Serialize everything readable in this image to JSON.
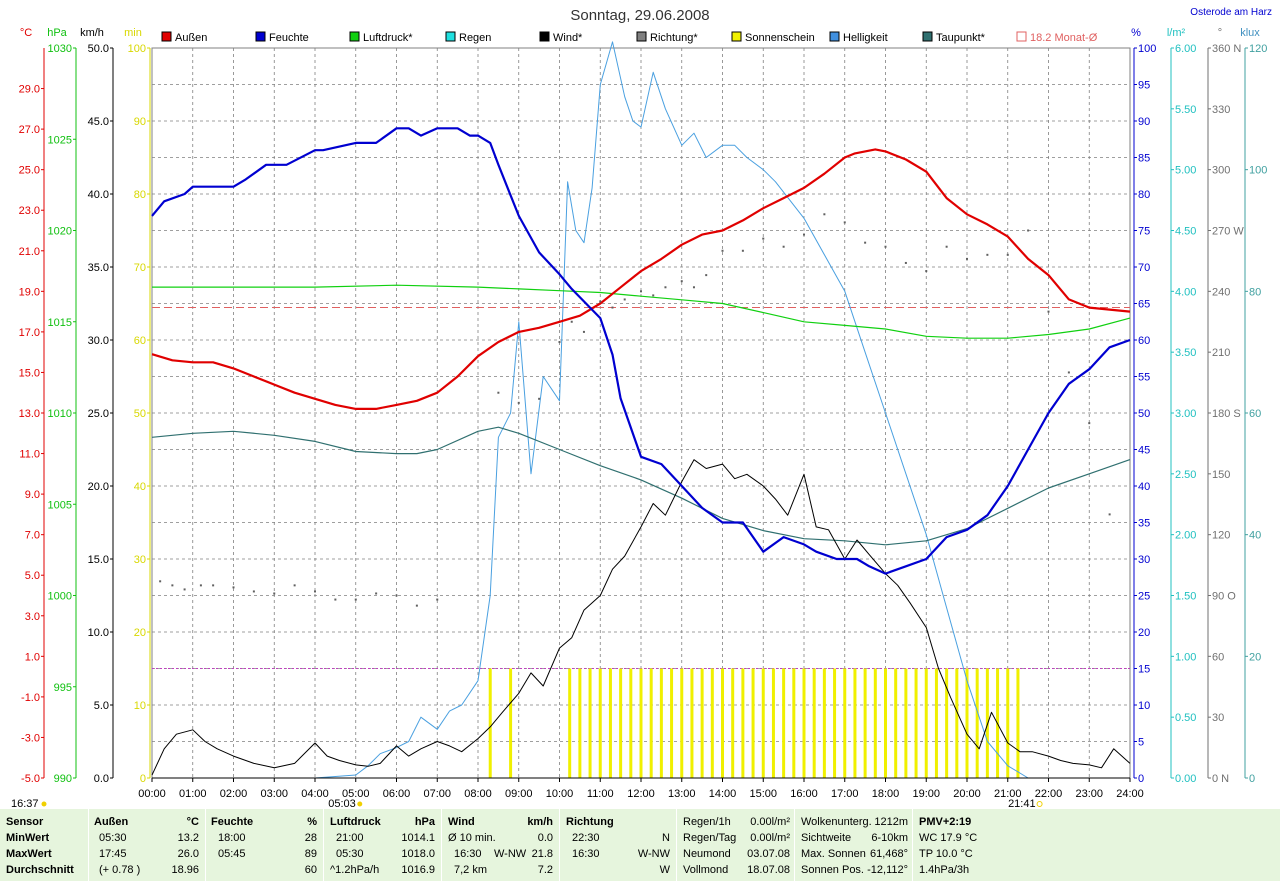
{
  "header": {
    "title": "Sonntag, 29.06.2008",
    "location": "Osterode am Harz",
    "units": {
      "temp": "°C",
      "pressure": "hPa",
      "wind": "km/h",
      "sun": "min",
      "humidity": "%",
      "rain": "l/m²",
      "direction": "°",
      "light": "klux"
    }
  },
  "legend": [
    {
      "label": "Außen",
      "color": "#e00000"
    },
    {
      "label": "Feuchte",
      "color": "#0000d0"
    },
    {
      "label": "Luftdruck*",
      "color": "#10d010"
    },
    {
      "label": "Regen",
      "color": "#20e0e0"
    },
    {
      "label": "Wind*",
      "color": "#000000"
    },
    {
      "label": "Richtung*",
      "color": "#808080"
    },
    {
      "label": "Sonnenschein",
      "color": "#f0f000"
    },
    {
      "label": "Helligkeit",
      "color": "#4090e0"
    },
    {
      "label": "Taupunkt*",
      "color": "#307070"
    },
    {
      "label": "18.2 Monat-Ø",
      "color": "#e06060"
    }
  ],
  "chart_data": {
    "type": "line",
    "x_ticks": [
      "00:00",
      "01:00",
      "02:00",
      "03:00",
      "04:00",
      "05:00",
      "06:00",
      "07:00",
      "08:00",
      "09:00",
      "10:00",
      "11:00",
      "12:00",
      "13:00",
      "14:00",
      "15:00",
      "16:00",
      "17:00",
      "18:00",
      "19:00",
      "20:00",
      "21:00",
      "22:00",
      "23:00",
      "24:00"
    ],
    "axes": {
      "temp": {
        "unit": "°C",
        "ylim": [
          -5,
          31
        ],
        "ticks": [
          "29.0",
          "27.0",
          "25.0",
          "23.0",
          "21.0",
          "19.0",
          "17.0",
          "15.0",
          "13.0",
          "11.0",
          "9.0",
          "7.0",
          "5.0",
          "3.0",
          "1.0",
          "-1.0",
          "-3.0",
          "-5.0"
        ]
      },
      "pressure": {
        "unit": "hPa",
        "ylim": [
          990,
          1030
        ],
        "ticks": [
          "1030",
          "1025",
          "1020",
          "1015",
          "1010",
          "1005",
          "1000",
          "995",
          "990"
        ]
      },
      "wind": {
        "unit": "km/h",
        "ylim": [
          0,
          50
        ],
        "ticks": [
          "50.0",
          "45.0",
          "40.0",
          "35.0",
          "30.0",
          "25.0",
          "20.0",
          "15.0",
          "10.0",
          "5.0",
          "0.0"
        ]
      },
      "sun": {
        "unit": "min",
        "ylim": [
          0,
          100
        ],
        "ticks": [
          "100",
          "90",
          "80",
          "70",
          "60",
          "50",
          "40",
          "30",
          "20",
          "10",
          "0"
        ]
      },
      "humidity": {
        "unit": "%",
        "ylim": [
          0,
          100
        ],
        "ticks": [
          "100",
          "95",
          "90",
          "85",
          "80",
          "75",
          "70",
          "65",
          "60",
          "55",
          "50",
          "45",
          "40",
          "35",
          "30",
          "25",
          "20",
          "15",
          "10",
          "5",
          "0"
        ]
      },
      "rain": {
        "unit": "l/m²",
        "ylim": [
          0,
          6
        ],
        "ticks": [
          "6.00",
          "5.50",
          "5.00",
          "4.50",
          "4.00",
          "3.50",
          "3.00",
          "2.50",
          "2.00",
          "1.50",
          "1.00",
          "0.50",
          "0.00"
        ]
      },
      "direction": {
        "unit": "°",
        "ylim": [
          0,
          360
        ],
        "ticks": [
          "360 N",
          "330",
          "300",
          "270 W",
          "240",
          "210",
          "180 S",
          "150",
          "120",
          "90 O",
          "60",
          "30",
          "0 N"
        ]
      },
      "light": {
        "unit": "klux",
        "ylim": [
          0,
          120
        ],
        "ticks": [
          "120",
          "100",
          "80",
          "60",
          "40",
          "20",
          "0"
        ]
      }
    },
    "monthly_avg_temp": 18.2,
    "series": [
      {
        "name": "Außen",
        "axis": "temp",
        "x": [
          0,
          0.5,
          1,
          1.5,
          2,
          2.5,
          3,
          3.5,
          4,
          4.5,
          5,
          5.5,
          6,
          6.5,
          7,
          7.5,
          8,
          8.5,
          9,
          9.5,
          10,
          10.5,
          11,
          11.5,
          12,
          12.5,
          13,
          13.5,
          14,
          14.5,
          15,
          15.5,
          16,
          16.5,
          17,
          17.25,
          17.5,
          17.75,
          18,
          18.5,
          19,
          19.5,
          20,
          20.5,
          21,
          21.5,
          22,
          22.5,
          23,
          23.5,
          24
        ],
        "y": [
          15.9,
          15.6,
          15.5,
          15.5,
          15.2,
          14.8,
          14.4,
          14.0,
          13.7,
          13.4,
          13.2,
          13.2,
          13.4,
          13.6,
          14.0,
          14.8,
          15.8,
          16.5,
          17.0,
          17.2,
          17.5,
          17.8,
          18.4,
          19.2,
          20.0,
          20.6,
          21.3,
          21.8,
          22.0,
          22.5,
          23.1,
          23.6,
          24.1,
          24.8,
          25.6,
          25.8,
          25.9,
          26.0,
          25.9,
          25.5,
          24.9,
          23.6,
          22.8,
          22.3,
          21.7,
          20.6,
          19.8,
          18.6,
          18.2,
          18.1,
          18.0
        ]
      },
      {
        "name": "Feuchte",
        "axis": "humidity",
        "x": [
          0,
          0.3,
          0.8,
          1,
          2,
          2.3,
          2.8,
          3.3,
          4,
          4.2,
          5,
          5.5,
          6,
          6.3,
          6.6,
          7,
          7.5,
          7.8,
          8,
          8.3,
          8.5,
          9,
          9.5,
          10,
          10.3,
          11,
          11.3,
          11.5,
          12,
          12.5,
          13,
          13.5,
          14,
          14.5,
          15,
          15.5,
          16,
          16.3,
          16.8,
          17.3,
          17.6,
          18,
          18.5,
          19,
          19.5,
          20,
          20.5,
          21,
          21.5,
          22,
          22.5,
          23,
          23.5,
          24
        ],
        "y": [
          77,
          79,
          80,
          81,
          81,
          82,
          84,
          84,
          86,
          86,
          87,
          87,
          89,
          89,
          88,
          89,
          89,
          88,
          88,
          87,
          84,
          77,
          72,
          69,
          67,
          63,
          58,
          52,
          44,
          43,
          40,
          37,
          35,
          35,
          31,
          33,
          32,
          31,
          30,
          30,
          29,
          28,
          29,
          30,
          33,
          34,
          36,
          40,
          45,
          50,
          54,
          56,
          59,
          60
        ]
      },
      {
        "name": "Luftdruck*",
        "axis": "pressure",
        "x": [
          0,
          2,
          4,
          6,
          8,
          9,
          10,
          11,
          12,
          13,
          14,
          15,
          16,
          17,
          18,
          19,
          20,
          20.5,
          21,
          22,
          23,
          24
        ],
        "y": [
          1016.9,
          1016.9,
          1016.9,
          1017.0,
          1016.9,
          1016.8,
          1016.7,
          1016.6,
          1016.4,
          1016.2,
          1016.0,
          1015.5,
          1015.0,
          1014.8,
          1014.6,
          1014.2,
          1014.1,
          1014.1,
          1014.1,
          1014.3,
          1014.6,
          1015.2
        ]
      },
      {
        "name": "Taupunkt*",
        "axis": "temp",
        "x": [
          0,
          0.5,
          1,
          2,
          3,
          4,
          5,
          6,
          6.5,
          7,
          8,
          8.5,
          9,
          10,
          11,
          12,
          13,
          14,
          15,
          16,
          17,
          17.5,
          18,
          19,
          20,
          21,
          22,
          23,
          24
        ],
        "y": [
          11.8,
          11.9,
          12.0,
          12.1,
          11.9,
          11.6,
          11.1,
          11.0,
          11.0,
          11.2,
          12.1,
          12.3,
          12.0,
          11.2,
          10.4,
          9.7,
          8.8,
          7.8,
          7.2,
          6.8,
          6.7,
          6.6,
          6.5,
          6.7,
          7.3,
          8.3,
          9.3,
          10.0,
          10.7
        ]
      },
      {
        "name": "Wind*",
        "axis": "wind",
        "x": [
          0,
          0.3,
          0.6,
          1,
          1.3,
          1.6,
          2,
          2.5,
          3,
          3.5,
          4,
          4.3,
          4.6,
          5,
          5.3,
          5.6,
          6,
          6.3,
          6.6,
          7,
          7.3,
          7.6,
          8,
          8.3,
          8.6,
          9,
          9.3,
          9.6,
          10,
          10.3,
          10.6,
          11,
          11.3,
          11.6,
          12,
          12.3,
          12.6,
          13,
          13.3,
          13.6,
          14,
          14.3,
          14.6,
          15,
          15.3,
          15.6,
          16,
          16.3,
          16.6,
          17,
          17.3,
          17.6,
          18,
          18.3,
          18.6,
          19,
          19.3,
          19.6,
          20,
          20.3,
          20.6,
          21,
          21.3,
          21.6,
          22,
          22.3,
          22.6,
          23,
          23.3,
          23.6,
          24
        ],
        "y": [
          0.2,
          2.0,
          3.0,
          3.3,
          2.5,
          2.0,
          1.5,
          1.0,
          0.7,
          1.0,
          2.4,
          1.5,
          1.2,
          0.9,
          0.8,
          1.0,
          2.2,
          1.5,
          2.0,
          2.5,
          2.2,
          1.8,
          2.7,
          3.5,
          4.5,
          5.8,
          7.2,
          6.3,
          8.9,
          9.6,
          11.5,
          12.5,
          14.3,
          15.2,
          17.2,
          18.8,
          18.0,
          20.3,
          21.8,
          21.2,
          21.5,
          20.5,
          20.8,
          20.0,
          19.1,
          18.0,
          20.8,
          17.2,
          17.0,
          15.0,
          16.3,
          15.3,
          14.0,
          13.2,
          12.0,
          10.3,
          7.5,
          5.5,
          3.0,
          2.0,
          4.5,
          2.4,
          1.8,
          1.8,
          1.5,
          1.2,
          1.0,
          0.9,
          0.7,
          2.0,
          1.0
        ]
      },
      {
        "name": "Helligkeit",
        "axis": "light",
        "x": [
          0,
          4,
          5,
          5.3,
          5.6,
          6,
          6.3,
          6.6,
          7,
          7.3,
          7.6,
          8,
          8.3,
          8.5,
          8.8,
          9,
          9.3,
          9.6,
          10,
          10.2,
          10.4,
          10.6,
          10.8,
          11,
          11.3,
          11.6,
          11.8,
          12,
          12.3,
          12.6,
          13,
          13.3,
          13.6,
          14,
          14.3,
          14.6,
          15,
          15.3,
          16,
          16.5,
          17,
          17.5,
          18,
          18.5,
          19,
          19.5,
          20,
          20.5,
          21,
          21.5,
          22,
          24
        ],
        "y": [
          0,
          0,
          0.5,
          2,
          4,
          5,
          6,
          10,
          8,
          11,
          12,
          16,
          30,
          56,
          60,
          75,
          50,
          66,
          62,
          98,
          90,
          88,
          97,
          114,
          121,
          112,
          108,
          107,
          116,
          110,
          104,
          106,
          102,
          104,
          104,
          102,
          100,
          98,
          92,
          86,
          80,
          70,
          60,
          50,
          40,
          28,
          16,
          6,
          2,
          0,
          0,
          0
        ]
      },
      {
        "name": "Richtung*",
        "axis": "direction",
        "x": [
          0.2,
          0.5,
          0.8,
          1.2,
          1.5,
          2.0,
          2.5,
          3.0,
          3.5,
          4.0,
          4.5,
          5.0,
          5.5,
          6.0,
          6.5,
          7.0,
          8.5,
          9.0,
          9.5,
          10.0,
          10.3,
          10.6,
          11.0,
          11.3,
          11.6,
          12.0,
          12.3,
          12.6,
          13.0,
          13.3,
          13.6,
          14.0,
          14.5,
          15.0,
          15.5,
          16.0,
          16.5,
          17.0,
          17.5,
          18.0,
          18.5,
          19.0,
          19.5,
          20.0,
          20.5,
          21.0,
          21.5,
          22.0,
          22.5,
          23.0,
          23.5
        ],
        "y": [
          97,
          95,
          93,
          95,
          95,
          94,
          92,
          91,
          95,
          92,
          88,
          88,
          91,
          90,
          85,
          88,
          190,
          185,
          187,
          215,
          225,
          220,
          235,
          232,
          236,
          240,
          238,
          242,
          245,
          242,
          248,
          260,
          260,
          266,
          262,
          268,
          278,
          274,
          264,
          262,
          254,
          250,
          262,
          256,
          258,
          258,
          270,
          230,
          200,
          175,
          130
        ]
      },
      {
        "name": "Sonnenschein",
        "axis": "sun",
        "x": [
          8.3,
          8.8,
          10.25,
          10.5,
          10.75,
          11,
          11.25,
          11.5,
          11.75,
          12,
          12.25,
          12.5,
          12.75,
          13,
          13.25,
          13.5,
          13.75,
          14,
          14.25,
          14.5,
          14.75,
          15,
          15.25,
          15.5,
          15.75,
          16,
          16.25,
          16.5,
          16.75,
          17,
          17.25,
          17.5,
          17.75,
          18,
          18.25,
          18.5,
          18.75,
          19,
          19.25,
          19.5,
          19.75,
          20,
          20.25,
          20.5,
          20.75,
          21,
          21.25
        ],
        "y": [
          15,
          15,
          15,
          15,
          15,
          15,
          15,
          15,
          15,
          15,
          15,
          15,
          15,
          15,
          15,
          15,
          15,
          15,
          15,
          15,
          15,
          15,
          15,
          15,
          15,
          15,
          15,
          15,
          15,
          15,
          15,
          15,
          15,
          15,
          15,
          15,
          15,
          15,
          15,
          15,
          15,
          15,
          15,
          15,
          15,
          15,
          15
        ]
      }
    ]
  },
  "sunrise": "05:03",
  "sunset": "21:41",
  "now_time": "16:37",
  "footer": {
    "sensor": {
      "h": "Sensor",
      "r1": "MinWert",
      "r2": "MaxWert",
      "r3": "Durchschnitt"
    },
    "aussen": {
      "h": "Außen",
      "unit": "°C",
      "r1t": "05:30",
      "r1v": "13.2",
      "r2t": "17:45",
      "r2v": "26.0",
      "r3t": "(+ 0.78 )",
      "r3v": "18.96"
    },
    "feuchte": {
      "h": "Feuchte",
      "unit": "%",
      "r1t": "18:00",
      "r1v": "28",
      "r2t": "05:45",
      "r2v": "89",
      "r3v": "60"
    },
    "luftdruck": {
      "h": "Luftdruck",
      "unit": "hPa",
      "r1t": "21:00",
      "r1v": "1014.1",
      "r2t": "05:30",
      "r2v": "1018.0",
      "r3t": "^1.2hPa/h",
      "r3v": "1016.9"
    },
    "wind": {
      "h": "Wind",
      "unit": "km/h",
      "r1t": "Ø 10 min.",
      "r1v": "0.0",
      "r2t": "16:30",
      "r2m": "W-NW",
      "r2v": "21.8",
      "r3t": "7,2 km",
      "r3v": "7.2"
    },
    "richtung": {
      "h": "Richtung",
      "r1t": "22:30",
      "r1v": "N",
      "r2t": "16:30",
      "r2v": "W-NW",
      "r3v": "W"
    },
    "regen": {
      "r0t": "Regen/1h",
      "r0v": "0.00l/m²",
      "r1t": "Regen/Tag",
      "r1v": "0.00l/m²",
      "r2t": "Neumond",
      "r2v": "03.07.08",
      "r3t": "Vollmond",
      "r3v": "18.07.08"
    },
    "wolke": {
      "r0t": "Wolkenunterg.",
      "r0v": "1212m",
      "r1t": "Sichtweite",
      "r1v": "6-10km",
      "r2t": "Max. Sonnen",
      "r2v": "61,468°",
      "r3t": "Sonnen Pos.",
      "r3v": "-12,112°"
    },
    "pmv": {
      "r0": "PMV+2:19",
      "r1": "WC 17.9 °C",
      "r2": "TP 10.0 °C",
      "r3": "1.4hPa/3h"
    }
  }
}
